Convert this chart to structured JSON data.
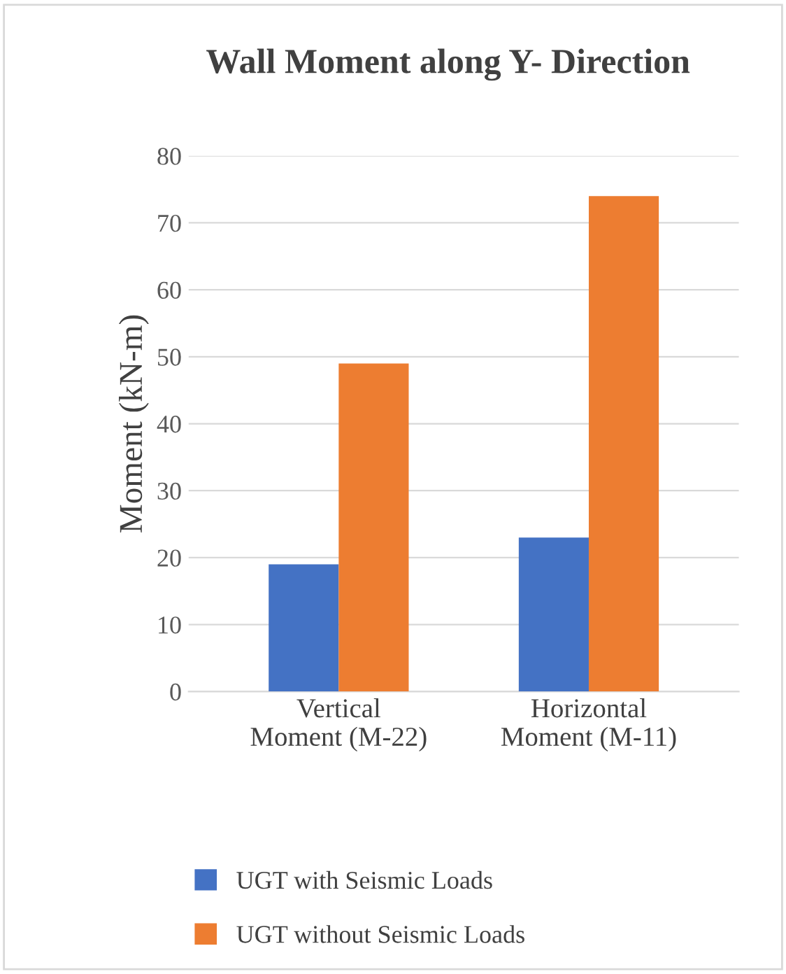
{
  "chart_data": {
    "type": "bar",
    "title": "Wall Moment along Y- Direction",
    "ylabel": "Moment (kN-m)",
    "categories": [
      "Vertical\nMoment (M-22)",
      "Horizontal\nMoment (M-11)"
    ],
    "series": [
      {
        "name": "UGT with Seismic Loads",
        "color": "#4472c4",
        "values": [
          19,
          23
        ]
      },
      {
        "name": "UGT without Seismic Loads",
        "color": "#ed7d31",
        "values": [
          49,
          74
        ]
      }
    ],
    "ylim": [
      0,
      80
    ],
    "yticks": [
      0,
      10,
      20,
      30,
      40,
      50,
      60,
      70,
      80
    ],
    "grid": "y",
    "legend": "bottom"
  }
}
